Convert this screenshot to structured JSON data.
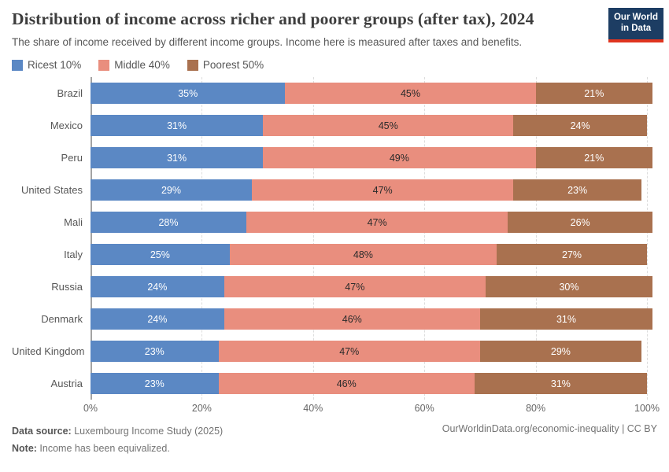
{
  "header": {
    "title": "Distribution of income across richer and poorer groups (after tax), 2024",
    "subtitle": "The share of income received by different income groups. Income here is measured after taxes and benefits.",
    "logo": {
      "line1": "Our World",
      "line2": "in Data",
      "bg_color": "#1d3d63",
      "accent_color": "#e0351f"
    }
  },
  "legend": [
    {
      "label": "Ricest 10%",
      "color": "#5b88c4"
    },
    {
      "label": "Middle 40%",
      "color": "#e98e7e"
    },
    {
      "label": "Poorest 50%",
      "color": "#a9714f"
    }
  ],
  "chart_data": {
    "type": "bar",
    "orientation": "horizontal",
    "stacked": true,
    "categories": [
      "Brazil",
      "Mexico",
      "Peru",
      "United States",
      "Mali",
      "Italy",
      "Russia",
      "Denmark",
      "United Kingdom",
      "Austria"
    ],
    "series": [
      {
        "name": "Ricest 10%",
        "color": "#5b88c4",
        "label_color": "#ffffff",
        "values": [
          35,
          31,
          31,
          29,
          28,
          25,
          24,
          24,
          23,
          23
        ]
      },
      {
        "name": "Middle 40%",
        "color": "#e98e7e",
        "label_color": "#2b2b2b",
        "values": [
          45,
          45,
          49,
          47,
          47,
          48,
          47,
          46,
          47,
          46
        ]
      },
      {
        "name": "Poorest 50%",
        "color": "#a9714f",
        "label_color": "#ffffff",
        "values": [
          21,
          24,
          21,
          23,
          26,
          27,
          30,
          31,
          29,
          31
        ]
      }
    ],
    "value_suffix": "%",
    "x_ticks": [
      "0%",
      "20%",
      "40%",
      "60%",
      "80%",
      "100%"
    ],
    "xlim": [
      0,
      100
    ],
    "grid": "vertical-dashed",
    "legend_position": "top-left"
  },
  "footer": {
    "datasource_label": "Data source:",
    "datasource_value": " Luxembourg Income Study (2025)",
    "note_label": "Note:",
    "note_value": " Income has been equivalized.",
    "credit": "OurWorldinData.org/economic-inequality | CC BY"
  }
}
